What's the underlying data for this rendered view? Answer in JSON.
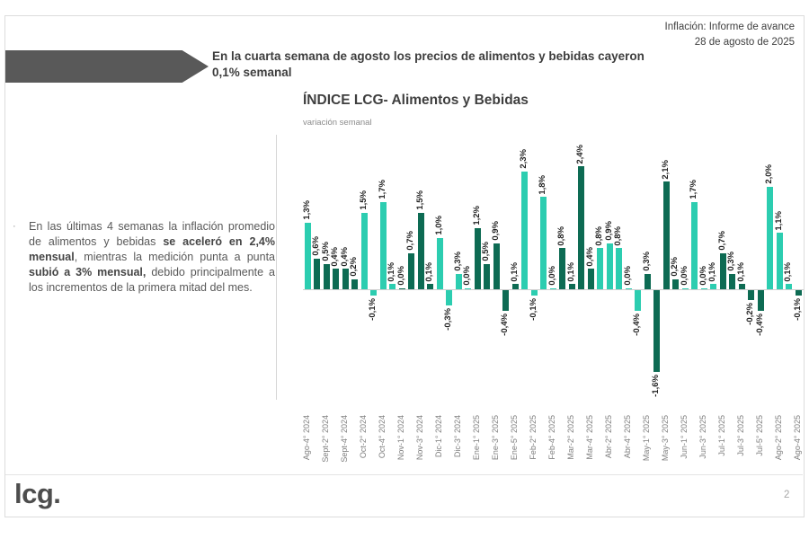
{
  "header": {
    "line1": "Inflación: Informe de avance",
    "line2": "28 de agosto de 2025"
  },
  "banner": {
    "arrow_color": "#595959",
    "title_line1": "En la cuarta semana de agosto los precios de alimentos y bebidas cayeron",
    "title_line2": "0,1% semanal"
  },
  "sidebar_note": {
    "bullet": "·",
    "segments": [
      {
        "text": "En las últimas 4 semanas la inflación promedio de alimentos y bebidas ",
        "bold": false
      },
      {
        "text": "se aceleró en 2,4% mensual",
        "bold": true
      },
      {
        "text": ", mientras la medición punta a punta ",
        "bold": false
      },
      {
        "text": "subió a 3% mensual,",
        "bold": true
      },
      {
        "text": " debido principalmente a los incrementos de la primera mitad del mes.",
        "bold": false
      }
    ]
  },
  "footer": {
    "logo": "lcg.",
    "page_number": "2"
  },
  "chart_data": {
    "type": "bar",
    "title": "ÍNDICE LCG- Alimentos y Bebidas",
    "subtitle": "variación semanal",
    "unit": "%",
    "ylim": [
      -1.8,
      2.6
    ],
    "grid": false,
    "legend": "none",
    "x_labels_every": 2,
    "colors": {
      "teal": "#2CCDB0",
      "dark": "#0D6B53"
    },
    "bars": [
      {
        "value": 1.3,
        "label": "1,3%",
        "series": "teal",
        "axis": "Ago-4° 2024"
      },
      {
        "value": 0.6,
        "label": "0,6%",
        "series": "dark"
      },
      {
        "value": 0.5,
        "label": "0,5%",
        "series": "dark",
        "axis": "Sept-2° 2024"
      },
      {
        "value": 0.4,
        "label": "0,4%",
        "series": "dark"
      },
      {
        "value": 0.4,
        "label": "0,4%",
        "series": "dark",
        "axis": "Sept-4° 2024"
      },
      {
        "value": 0.2,
        "label": "0,2%",
        "series": "dark"
      },
      {
        "value": 1.5,
        "label": "1,5%",
        "series": "teal",
        "axis": "Oct-2° 2024"
      },
      {
        "value": -0.1,
        "label": "-0,1%",
        "series": "teal"
      },
      {
        "value": 1.7,
        "label": "1,7%",
        "series": "teal",
        "axis": "Oct-4° 2024"
      },
      {
        "value": 0.1,
        "label": "0,1%",
        "series": "teal"
      },
      {
        "value": 0.0,
        "label": "0,0%",
        "series": "dark",
        "axis": "Nov-1° 2024"
      },
      {
        "value": 0.7,
        "label": "0,7%",
        "series": "dark"
      },
      {
        "value": 1.5,
        "label": "1,5%",
        "series": "dark",
        "axis": "Nov-3° 2024"
      },
      {
        "value": 0.1,
        "label": "0,1%",
        "series": "dark"
      },
      {
        "value": 1.0,
        "label": "1,0%",
        "series": "teal",
        "axis": "Dic-1° 2024"
      },
      {
        "value": -0.3,
        "label": "-0,3%",
        "series": "teal"
      },
      {
        "value": 0.3,
        "label": "0,3%",
        "series": "teal",
        "axis": "Dic-3° 2024"
      },
      {
        "value": 0.0,
        "label": "0,0%",
        "series": "teal"
      },
      {
        "value": 1.2,
        "label": "1,2%",
        "series": "dark",
        "axis": "Ene-1° 2025"
      },
      {
        "value": 0.5,
        "label": "0,5%",
        "series": "dark"
      },
      {
        "value": 0.9,
        "label": "0,9%",
        "series": "dark",
        "axis": "Ene-3° 2025"
      },
      {
        "value": -0.4,
        "label": "-0,4%",
        "series": "dark"
      },
      {
        "value": 0.1,
        "label": "0,1%",
        "series": "dark",
        "axis": "Ene-5° 2025"
      },
      {
        "value": 2.3,
        "label": "2,3%",
        "series": "teal"
      },
      {
        "value": -0.1,
        "label": "-0,1%",
        "series": "teal",
        "axis": "Feb-2° 2025"
      },
      {
        "value": 1.8,
        "label": "1,8%",
        "series": "teal"
      },
      {
        "value": 0.0,
        "label": "0,0%",
        "series": "teal",
        "axis": "Feb-4° 2025"
      },
      {
        "value": 0.8,
        "label": "0,8%",
        "series": "dark"
      },
      {
        "value": 0.1,
        "label": "0,1%",
        "series": "dark",
        "axis": "Mar-2° 2025"
      },
      {
        "value": 2.4,
        "label": "2,4%",
        "series": "dark"
      },
      {
        "value": 0.4,
        "label": "0,4%",
        "series": "dark",
        "axis": "Mar-4° 2025"
      },
      {
        "value": 0.8,
        "label": "0,8%",
        "series": "teal"
      },
      {
        "value": 0.9,
        "label": "0,9%",
        "series": "teal",
        "axis": "Abr-2° 2025"
      },
      {
        "value": 0.8,
        "label": "0,8%",
        "series": "teal"
      },
      {
        "value": 0.0,
        "label": "0,0%",
        "series": "teal",
        "axis": "Abr-4° 2025"
      },
      {
        "value": -0.4,
        "label": "-0,4%",
        "series": "teal"
      },
      {
        "value": 0.3,
        "label": "0,3%",
        "series": "dark",
        "axis": "May-1° 2025"
      },
      {
        "value": -1.6,
        "label": "-1,6%",
        "series": "dark"
      },
      {
        "value": 2.1,
        "label": "2,1%",
        "series": "dark",
        "axis": "May-3° 2025"
      },
      {
        "value": 0.2,
        "label": "0,2%",
        "series": "dark"
      },
      {
        "value": 0.0,
        "label": "0,0%",
        "series": "teal",
        "axis": "Jun-1° 2025"
      },
      {
        "value": 1.7,
        "label": "1,7%",
        "series": "teal"
      },
      {
        "value": 0.0,
        "label": "0,0%",
        "series": "teal",
        "axis": "Jun-3° 2025"
      },
      {
        "value": 0.1,
        "label": "0,1%",
        "series": "teal"
      },
      {
        "value": 0.7,
        "label": "0,7%",
        "series": "dark",
        "axis": "Jul-1° 2025"
      },
      {
        "value": 0.3,
        "label": "0,3%",
        "series": "dark"
      },
      {
        "value": 0.1,
        "label": "0,1%",
        "series": "dark",
        "axis": "Jul-3° 2025"
      },
      {
        "value": -0.2,
        "label": "-0,2%",
        "series": "dark"
      },
      {
        "value": -0.4,
        "label": "-0,4%",
        "series": "dark",
        "axis": "Jul-5° 2025"
      },
      {
        "value": 2.0,
        "label": "2,0%",
        "series": "teal"
      },
      {
        "value": 1.1,
        "label": "1,1%",
        "series": "teal",
        "axis": "Ago-2° 2025"
      },
      {
        "value": 0.1,
        "label": "0,1%",
        "series": "teal"
      },
      {
        "value": -0.1,
        "label": "-0,1%",
        "series": "dark",
        "axis": "Ago-4° 2025"
      }
    ]
  }
}
